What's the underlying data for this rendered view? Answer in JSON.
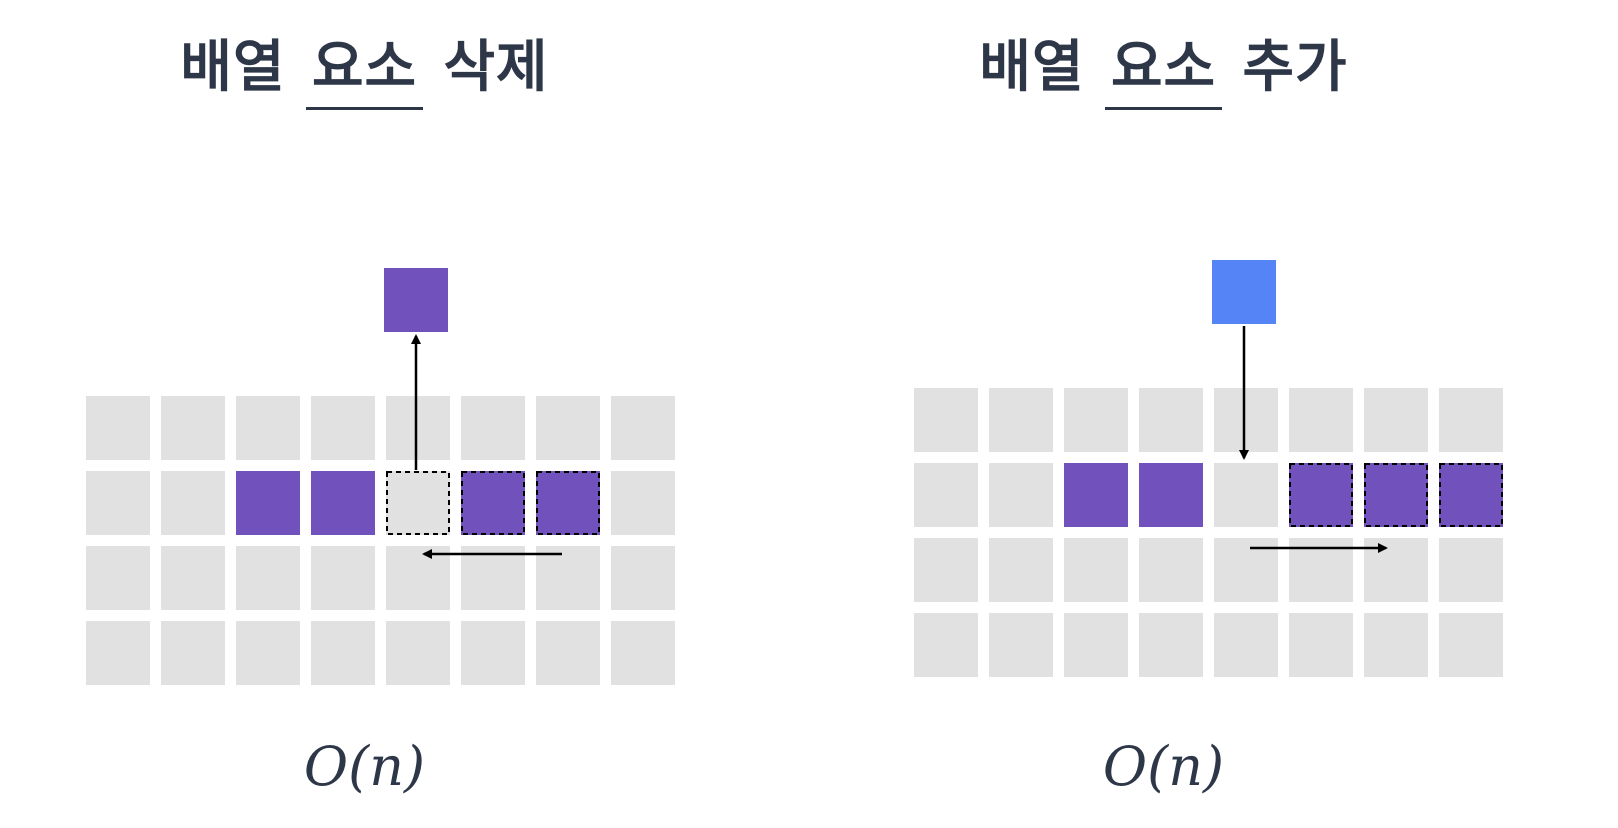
{
  "colors": {
    "background": "#ffffff",
    "cell": "#e1e1e1",
    "element": "#7152bc",
    "new_element": "#5484f6",
    "title": "#2d3748",
    "arrow": "#000000"
  },
  "delete_panel": {
    "title_prefix": "배열",
    "title_underlined": "요소",
    "title_suffix": "삭제",
    "complexity": "O(n)",
    "grid": {
      "rows": 4,
      "cols": 8
    },
    "filled_cells": [
      {
        "row": 1,
        "col": 2
      },
      {
        "row": 1,
        "col": 3
      },
      {
        "row": 1,
        "col": 5,
        "dashed": true
      },
      {
        "row": 1,
        "col": 6,
        "dashed": true
      }
    ],
    "emptied_cell": {
      "row": 1,
      "col": 4,
      "dashed": true
    },
    "removed_block_icon": "purple-square",
    "shift_direction": "left"
  },
  "insert_panel": {
    "title_prefix": "배열",
    "title_underlined": "요소",
    "title_suffix": "추가",
    "complexity": "O(n)",
    "grid": {
      "rows": 4,
      "cols": 8
    },
    "filled_cells": [
      {
        "row": 1,
        "col": 2
      },
      {
        "row": 1,
        "col": 3
      },
      {
        "row": 1,
        "col": 5,
        "dashed": true
      },
      {
        "row": 1,
        "col": 6,
        "dashed": true
      },
      {
        "row": 1,
        "col": 7,
        "dashed": true
      }
    ],
    "target_cell": {
      "row": 1,
      "col": 4
    },
    "inserted_block_icon": "blue-square",
    "shift_direction": "right"
  }
}
